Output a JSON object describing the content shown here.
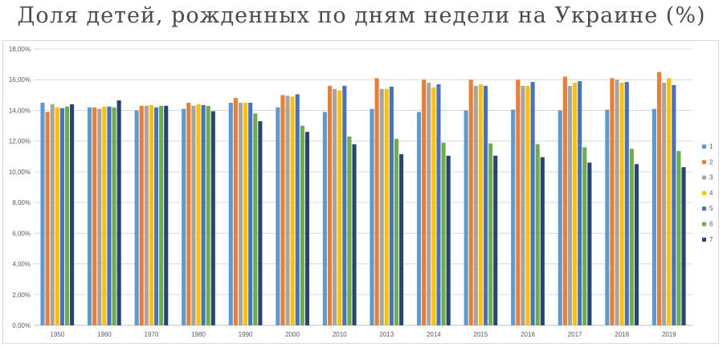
{
  "title": "Доля детей, рожденных по дням недели на Украине (%)",
  "chart_data": {
    "type": "bar",
    "title": "Доля детей, рожденных по дням недели на Украине (%)",
    "xlabel": "",
    "ylabel": "",
    "ylim": [
      0,
      18
    ],
    "y_ticks": [
      "0,00%",
      "2,00%",
      "4,00%",
      "6,00%",
      "8,00%",
      "10,00%",
      "12,00%",
      "14,00%",
      "16,00%",
      "18,00%"
    ],
    "grid": true,
    "legend_position": "right",
    "categories": [
      "1950",
      "1960",
      "1970",
      "1980",
      "1990",
      "2000",
      "2010",
      "2013",
      "2014",
      "2015",
      "2016",
      "2017",
      "2018",
      "2019"
    ],
    "series": [
      {
        "name": "1",
        "color": "#5b9bd5",
        "values": [
          14.5,
          14.2,
          14.0,
          14.1,
          14.5,
          14.2,
          13.9,
          14.1,
          13.9,
          14.0,
          14.05,
          14.0,
          14.05,
          14.1
        ]
      },
      {
        "name": "2",
        "color": "#ed7d31",
        "values": [
          13.9,
          14.2,
          14.3,
          14.5,
          14.8,
          15.0,
          15.6,
          16.1,
          16.0,
          16.0,
          16.0,
          16.2,
          16.1,
          16.5
        ]
      },
      {
        "name": "3",
        "color": "#a5a5a5",
        "values": [
          14.4,
          14.1,
          14.3,
          14.3,
          14.5,
          14.95,
          15.4,
          15.4,
          15.8,
          15.6,
          15.6,
          15.6,
          16.0,
          15.8
        ]
      },
      {
        "name": "4",
        "color": "#ffc000",
        "values": [
          14.2,
          14.25,
          14.35,
          14.4,
          14.5,
          14.9,
          15.3,
          15.4,
          15.5,
          15.7,
          15.6,
          15.8,
          15.8,
          16.1
        ]
      },
      {
        "name": "5",
        "color": "#4472c4",
        "values": [
          14.15,
          14.25,
          14.2,
          14.35,
          14.5,
          15.05,
          15.6,
          15.55,
          15.7,
          15.6,
          15.85,
          15.9,
          15.85,
          15.65
        ]
      },
      {
        "name": "6",
        "color": "#70ad47",
        "values": [
          14.25,
          14.2,
          14.3,
          14.3,
          13.8,
          13.0,
          12.3,
          12.15,
          11.9,
          11.85,
          11.8,
          11.6,
          11.5,
          11.35
        ]
      },
      {
        "name": "7",
        "color": "#264478",
        "values": [
          14.4,
          14.65,
          14.3,
          13.95,
          13.3,
          12.6,
          11.8,
          11.15,
          11.05,
          11.05,
          10.95,
          10.6,
          10.5,
          10.3
        ]
      }
    ]
  }
}
